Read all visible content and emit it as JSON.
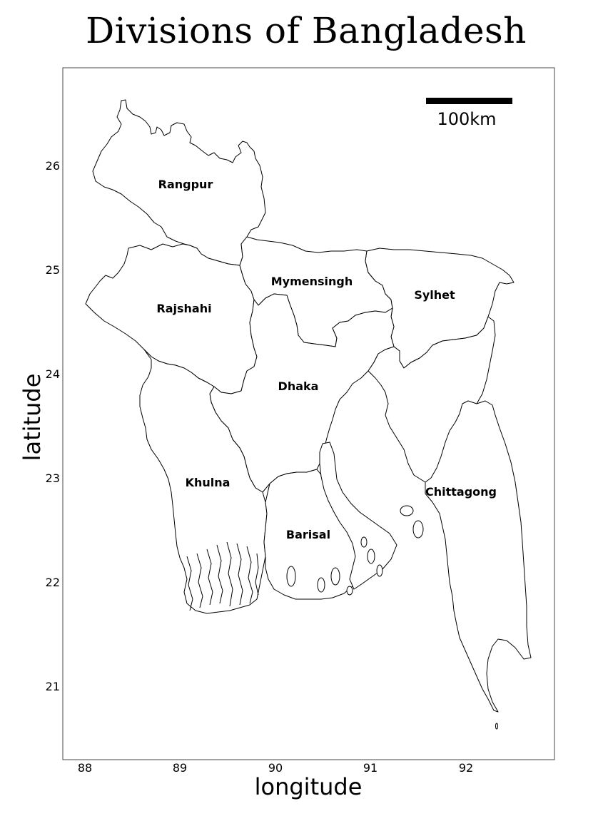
{
  "title": "Divisions of Bangladesh",
  "xlabel": "longitude",
  "ylabel": "latitude",
  "x_ticks": [
    "88",
    "89",
    "90",
    "91",
    "92"
  ],
  "y_ticks": [
    "26",
    "25",
    "24",
    "23",
    "22",
    "21"
  ],
  "scalebar_label": "100km",
  "divisions": [
    {
      "name": "Rangpur"
    },
    {
      "name": "Rajshahi"
    },
    {
      "name": "Mymensingh"
    },
    {
      "name": "Sylhet"
    },
    {
      "name": "Dhaka"
    },
    {
      "name": "Khulna"
    },
    {
      "name": "Barisal"
    },
    {
      "name": "Chittagong"
    }
  ]
}
